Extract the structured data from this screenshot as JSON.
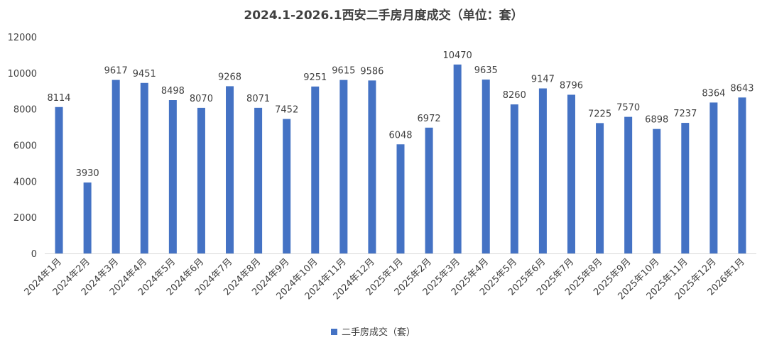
{
  "chart_data": {
    "type": "bar",
    "title": "2024.1-2026.1西安二手房月度成交（单位：套）",
    "categories": [
      "2024年1月",
      "2024年2月",
      "2024年3月",
      "2024年4月",
      "2024年5月",
      "2024年6月",
      "2024年7月",
      "2024年8月",
      "2024年9月",
      "2024年10月",
      "2024年11月",
      "2024年12月",
      "2025年1月",
      "2025年2月",
      "2025年3月",
      "2025年4月",
      "2025年5月",
      "2025年6月",
      "2025年7月",
      "2025年8月",
      "2025年9月",
      "2025年10月",
      "2025年11月",
      "2025年12月",
      "2026年1月"
    ],
    "series": [
      {
        "name": "二手房成交（套）",
        "values": [
          8114,
          3930,
          9617,
          9451,
          8498,
          8070,
          9268,
          8071,
          7452,
          9251,
          9615,
          9586,
          6048,
          6972,
          10470,
          9635,
          8260,
          9147,
          8796,
          7225,
          7570,
          6898,
          7237,
          8364,
          8643
        ],
        "color": "#4472C4"
      }
    ],
    "ylim": [
      0,
      12000
    ],
    "yticks": [
      0,
      2000,
      4000,
      6000,
      8000,
      10000,
      12000
    ],
    "grid": false,
    "legend": "bottom"
  }
}
